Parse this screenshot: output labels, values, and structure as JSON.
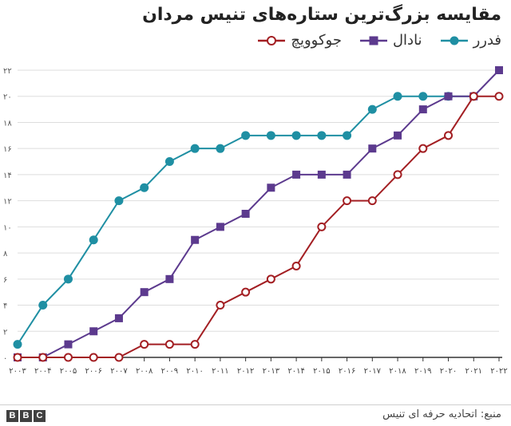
{
  "title": "مقایسه بزرگ‌ترین ستاره‌های تنیس مردان",
  "source": "منبع: اتحادیه حرفه ای تنیس",
  "logo": [
    "B",
    "B",
    "C"
  ],
  "colors": {
    "federer": "#1f8fa3",
    "nadal": "#5c3a8e",
    "djokovic": "#a31f23",
    "grid": "#dddddd",
    "axis": "#333333"
  },
  "chart_data": {
    "type": "line",
    "title": "مقایسه بزرگ‌ترین ستاره‌های تنیس مردان",
    "xlabel": "",
    "ylabel": "",
    "x": [
      "۲۰۰۳",
      "۲۰۰۴",
      "۲۰۰۵",
      "۲۰۰۶",
      "۲۰۰۷",
      "۲۰۰۸",
      "۲۰۰۹",
      "۲۰۱۰",
      "۲۰۱۱",
      "۲۰۱۲",
      "۲۰۱۳",
      "۲۰۱۴",
      "۲۰۱۵",
      "۲۰۱۶",
      "۲۰۱۷",
      "۲۰۱۸",
      "۲۰۱۹",
      "۲۰۲۰",
      "۲۰۲۱",
      "۲۰۲۲"
    ],
    "ylim": [
      0,
      22
    ],
    "yticks": [
      0,
      2,
      4,
      6,
      8,
      10,
      12,
      14,
      16,
      18,
      20,
      22
    ],
    "ytick_labels": [
      "۰",
      "۲",
      "۴",
      "۶",
      "۸",
      "۱۰",
      "۱۲",
      "۱۴",
      "۱۶",
      "۱۸",
      "۲۰",
      "۲۲"
    ],
    "grid": true,
    "legend_position": "top-right",
    "series": [
      {
        "name": "فدرر",
        "key": "federer",
        "marker": "circle-filled",
        "values": [
          1,
          4,
          6,
          9,
          12,
          13,
          15,
          16,
          16,
          17,
          17,
          17,
          17,
          17,
          19,
          20,
          20,
          20,
          20,
          null
        ]
      },
      {
        "name": "نادال",
        "key": "nadal",
        "marker": "square",
        "values": [
          0,
          0,
          1,
          2,
          3,
          5,
          6,
          9,
          10,
          11,
          13,
          14,
          14,
          14,
          16,
          17,
          19,
          20,
          20,
          22
        ]
      },
      {
        "name": "جوکوویچ",
        "key": "djokovic",
        "marker": "circle-open",
        "values": [
          0,
          0,
          0,
          0,
          0,
          1,
          1,
          1,
          4,
          5,
          6,
          7,
          10,
          12,
          12,
          14,
          16,
          17,
          20,
          20
        ]
      }
    ]
  }
}
